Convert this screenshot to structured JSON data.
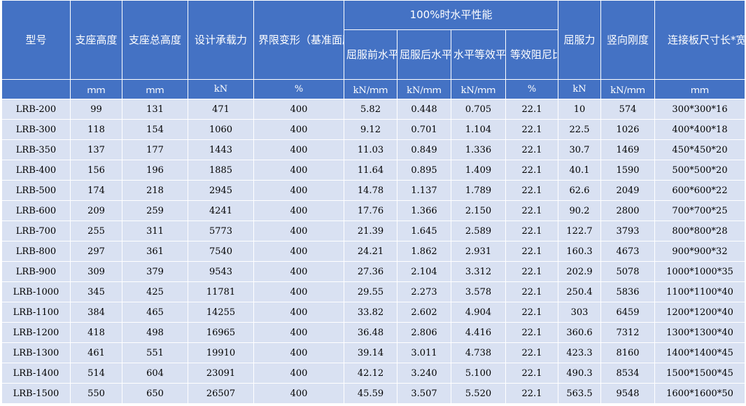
{
  "table": {
    "group_header": "100%时水平性能",
    "headers": {
      "model": "型号",
      "height": "支座高度",
      "total_height": "支座总高度",
      "design_load": "设计承载力",
      "limit_deform": "界限变形（基准面压时）",
      "pre_yield": "屈服前水平刚度",
      "post_yield": "屈服后水平刚度",
      "equiv_stiff": "水平等效平刚度",
      "damping": "等效阻尼比",
      "yield_force": "屈服力",
      "vert_stiff": "竖向刚度",
      "plate_size": "连接板尺寸长*宽*高"
    },
    "units": [
      "ｍｍ",
      "ｍｍ",
      "kN",
      "%",
      "kN/ｍｍ",
      "kN/ｍｍ",
      "kN/ｍｍ",
      "%",
      "kN",
      "kN/ｍｍ",
      "ｍｍ"
    ],
    "rows": [
      [
        "LRB-200",
        "99",
        "131",
        "471",
        "400",
        "5.82",
        "0.448",
        "0.705",
        "22.1",
        "10",
        "574",
        "300*300*16"
      ],
      [
        "LRB-300",
        "118",
        "154",
        "1060",
        "400",
        "9.12",
        "0.701",
        "1.104",
        "22.1",
        "22.5",
        "1026",
        "400*400*18"
      ],
      [
        "LRB-350",
        "137",
        "177",
        "1443",
        "400",
        "11.03",
        "0.849",
        "1.336",
        "22.1",
        "30.7",
        "1469",
        "450*450*20"
      ],
      [
        "LRB-400",
        "156",
        "196",
        "1885",
        "400",
        "11.64",
        "0.895",
        "1.409",
        "22.1",
        "40.1",
        "1590",
        "500*500*20"
      ],
      [
        "LRB-500",
        "174",
        "218",
        "2945",
        "400",
        "14.78",
        "1.137",
        "1.789",
        "22.1",
        "62.6",
        "2049",
        "600*600*22"
      ],
      [
        "LRB-600",
        "209",
        "259",
        "4241",
        "400",
        "17.76",
        "1.366",
        "2.150",
        "22.1",
        "90.2",
        "2800",
        "700*700*25"
      ],
      [
        "LRB-700",
        "255",
        "311",
        "5773",
        "400",
        "21.39",
        "1.645",
        "2.589",
        "22.1",
        "122.7",
        "3793",
        "800*800*28"
      ],
      [
        "LRB-800",
        "297",
        "361",
        "7540",
        "400",
        "24.21",
        "1.862",
        "2.931",
        "22.1",
        "160.3",
        "4673",
        "900*900*32"
      ],
      [
        "LRB-900",
        "309",
        "379",
        "9543",
        "400",
        "27.36",
        "2.104",
        "3.312",
        "22.1",
        "202.9",
        "5078",
        "1000*1000*35"
      ],
      [
        "LRB-1000",
        "345",
        "425",
        "11781",
        "400",
        "29.55",
        "2.273",
        "3.578",
        "22.1",
        "250.4",
        "5836",
        "1100*1100*40"
      ],
      [
        "LRB-1100",
        "384",
        "465",
        "14255",
        "400",
        "33.82",
        "2.602",
        "4.904",
        "22.1",
        "303",
        "6459",
        "1200*1200*40"
      ],
      [
        "LRB-1200",
        "418",
        "498",
        "16965",
        "400",
        "36.48",
        "2.806",
        "4.416",
        "22.1",
        "360.6",
        "7312",
        "1300*1300*40"
      ],
      [
        "LRB-1300",
        "461",
        "551",
        "19910",
        "400",
        "39.14",
        "3.011",
        "4.738",
        "22.1",
        "423.3",
        "8160",
        "1400*1400*45"
      ],
      [
        "LRB-1400",
        "514",
        "604",
        "23091",
        "400",
        "42.12",
        "3.240",
        "5.100",
        "22.1",
        "490.3",
        "8534",
        "1500*1500*45"
      ],
      [
        "LRB-1500",
        "550",
        "650",
        "26507",
        "400",
        "45.59",
        "3.507",
        "5.520",
        "22.1",
        "563.5",
        "9548",
        "1600*1600*50"
      ]
    ]
  }
}
